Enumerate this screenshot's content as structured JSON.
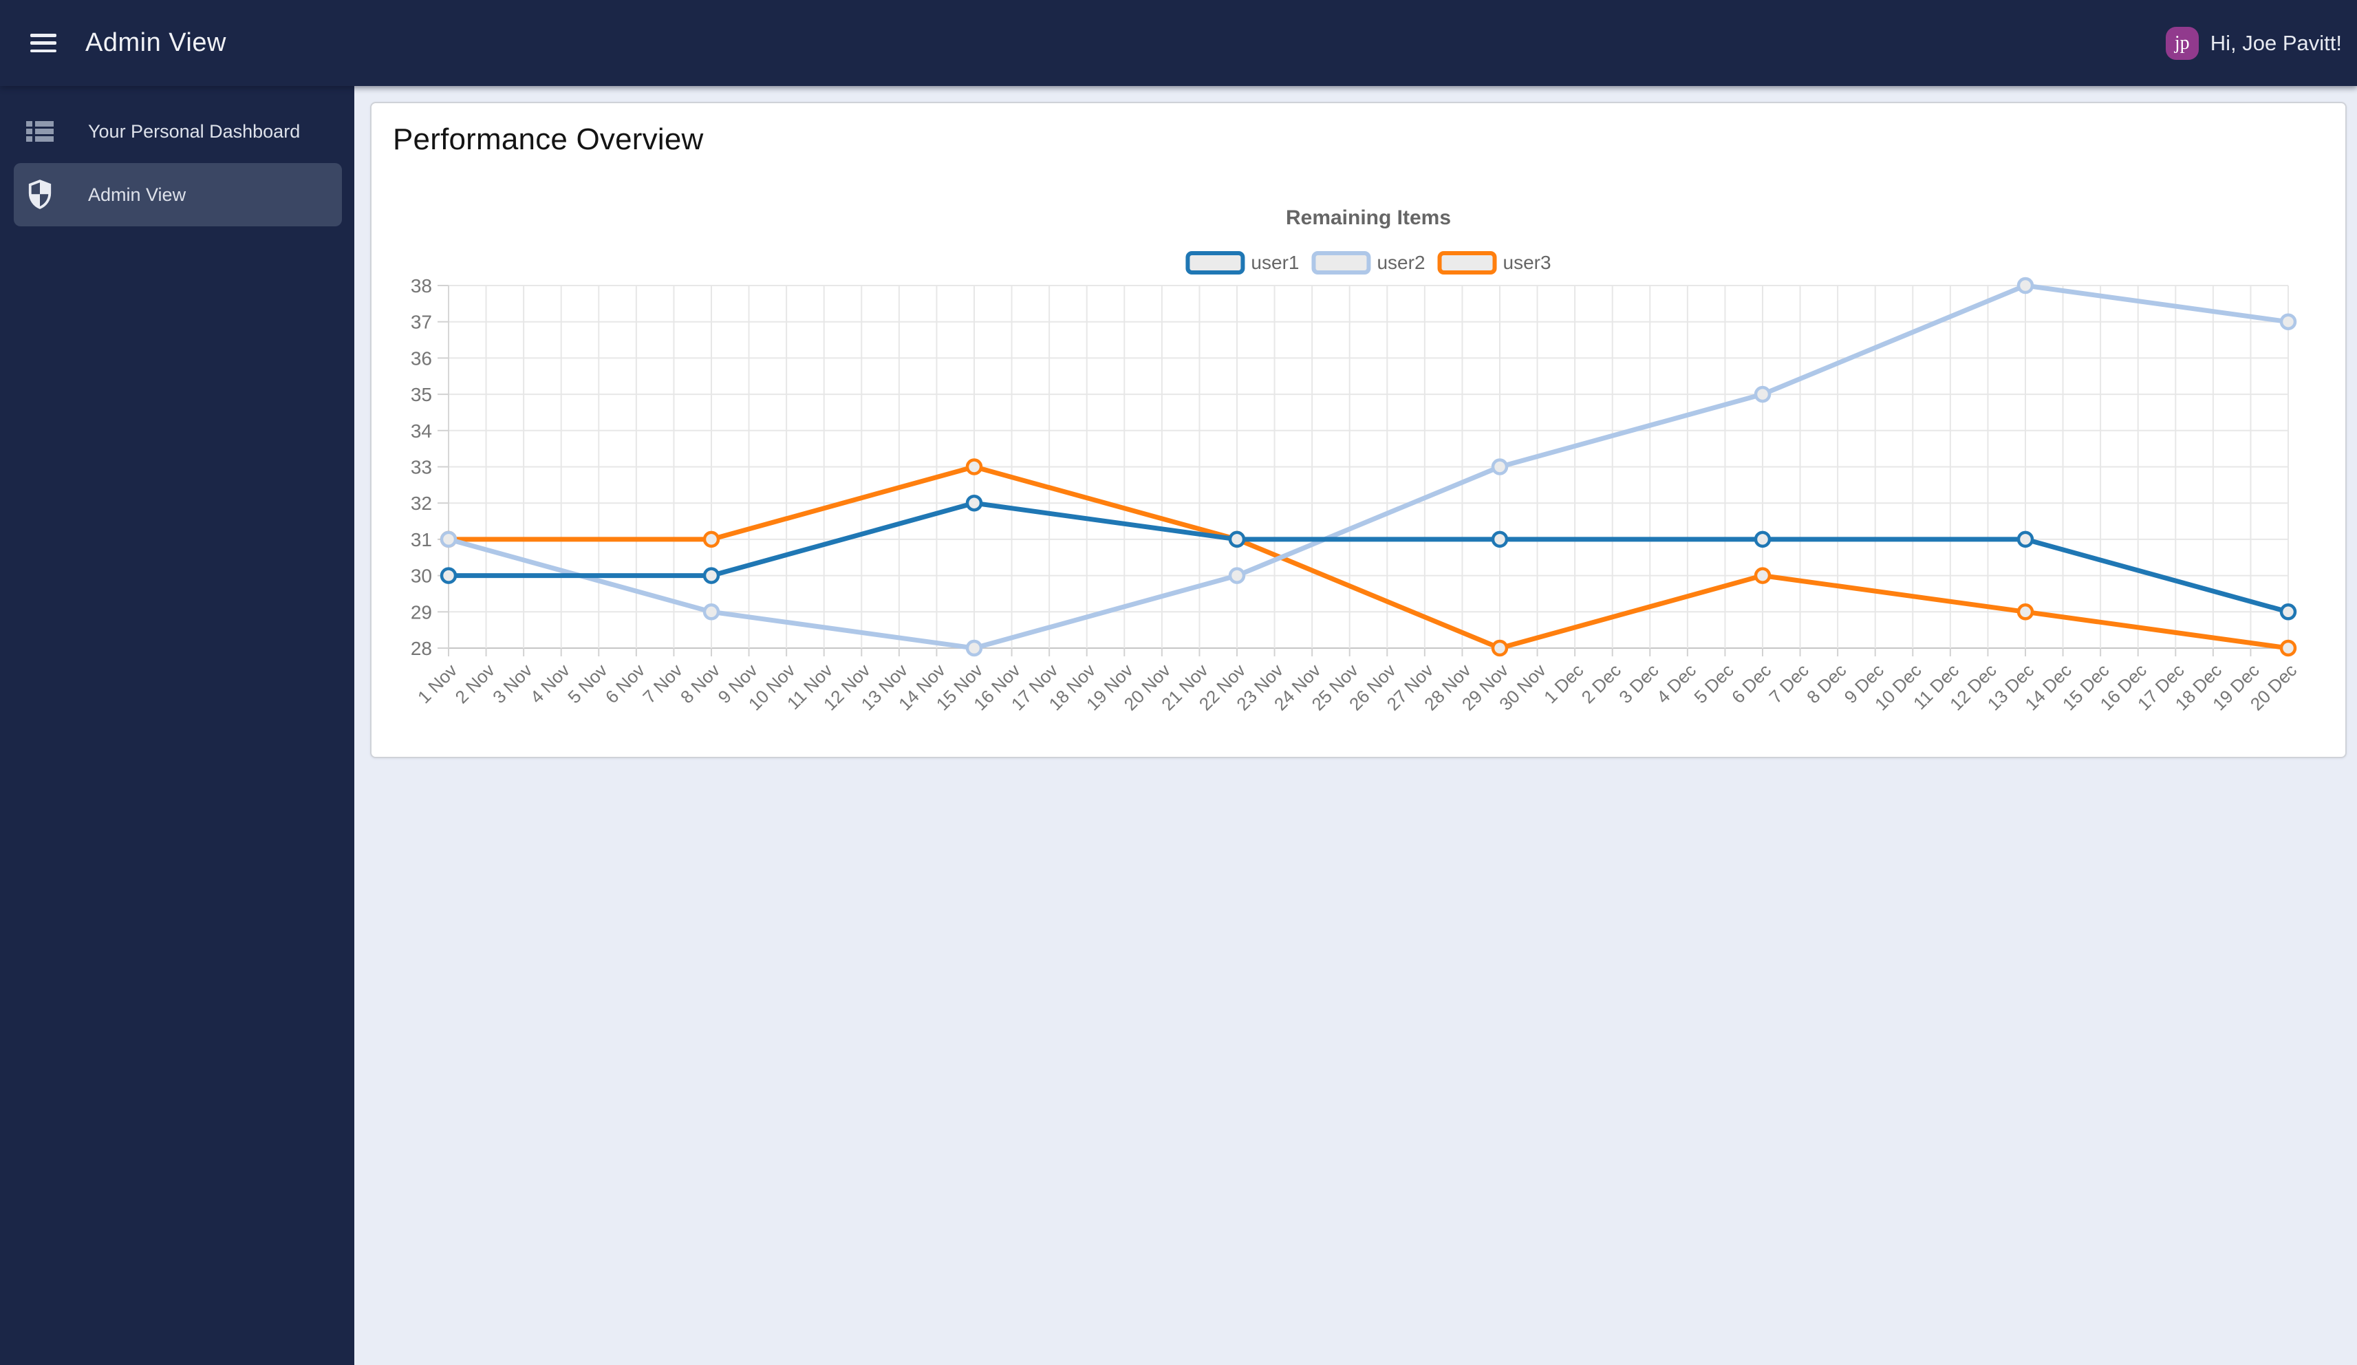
{
  "header": {
    "title": "Admin View",
    "greeting": "Hi, Joe Pavitt!",
    "avatar_initials": "jp"
  },
  "sidebar": {
    "items": [
      {
        "label": "Your Personal Dashboard",
        "icon": "list-icon",
        "active": false
      },
      {
        "label": "Admin View",
        "icon": "shield-icon",
        "active": true
      }
    ]
  },
  "main": {
    "card_title": "Performance Overview"
  },
  "chart_data": {
    "type": "line",
    "title": "Remaining Items",
    "x_labels": [
      "1 Nov",
      "2 Nov",
      "3 Nov",
      "4 Nov",
      "5 Nov",
      "6 Nov",
      "7 Nov",
      "8 Nov",
      "9 Nov",
      "10 Nov",
      "11 Nov",
      "12 Nov",
      "13 Nov",
      "14 Nov",
      "15 Nov",
      "16 Nov",
      "17 Nov",
      "18 Nov",
      "19 Nov",
      "20 Nov",
      "21 Nov",
      "22 Nov",
      "23 Nov",
      "24 Nov",
      "25 Nov",
      "26 Nov",
      "27 Nov",
      "28 Nov",
      "29 Nov",
      "30 Nov",
      "1 Dec",
      "2 Dec",
      "3 Dec",
      "4 Dec",
      "5 Dec",
      "6 Dec",
      "7 Dec",
      "8 Dec",
      "9 Dec",
      "10 Dec",
      "11 Dec",
      "12 Dec",
      "13 Dec",
      "14 Dec",
      "15 Dec",
      "16 Dec",
      "17 Dec",
      "18 Dec",
      "19 Dec",
      "20 Dec"
    ],
    "sample_x": [
      "1 Nov",
      "8 Nov",
      "15 Nov",
      "22 Nov",
      "29 Nov",
      "6 Dec",
      "13 Dec",
      "20 Dec"
    ],
    "series": [
      {
        "name": "user1",
        "color": "#1f77b4",
        "values": [
          30,
          30,
          32,
          31,
          31,
          31,
          31,
          29
        ]
      },
      {
        "name": "user2",
        "color": "#aec7e8",
        "values": [
          31,
          29,
          28,
          30,
          33,
          35,
          38,
          37
        ]
      },
      {
        "name": "user3",
        "color": "#ff7f0e",
        "values": [
          31,
          31,
          33,
          31,
          28,
          30,
          29,
          28
        ]
      }
    ],
    "ylim": [
      28,
      38
    ],
    "y_tick_step": 1,
    "grid": true,
    "legend_position": "top",
    "marker_fill": "#ebebeb",
    "legend_box_fill": "#ebebeb",
    "axis_text_color": "#757575",
    "title_color": "#666666",
    "grid_color": "#e7e7e7",
    "axis_line_color": "#c6c6c6"
  },
  "colors": {
    "navy": "#1b2647",
    "sidebar_active": "#3b4764",
    "content_bg": "#e9edf6",
    "avatar_bg": "#913a8d",
    "card_border": "#cfd2d8"
  }
}
